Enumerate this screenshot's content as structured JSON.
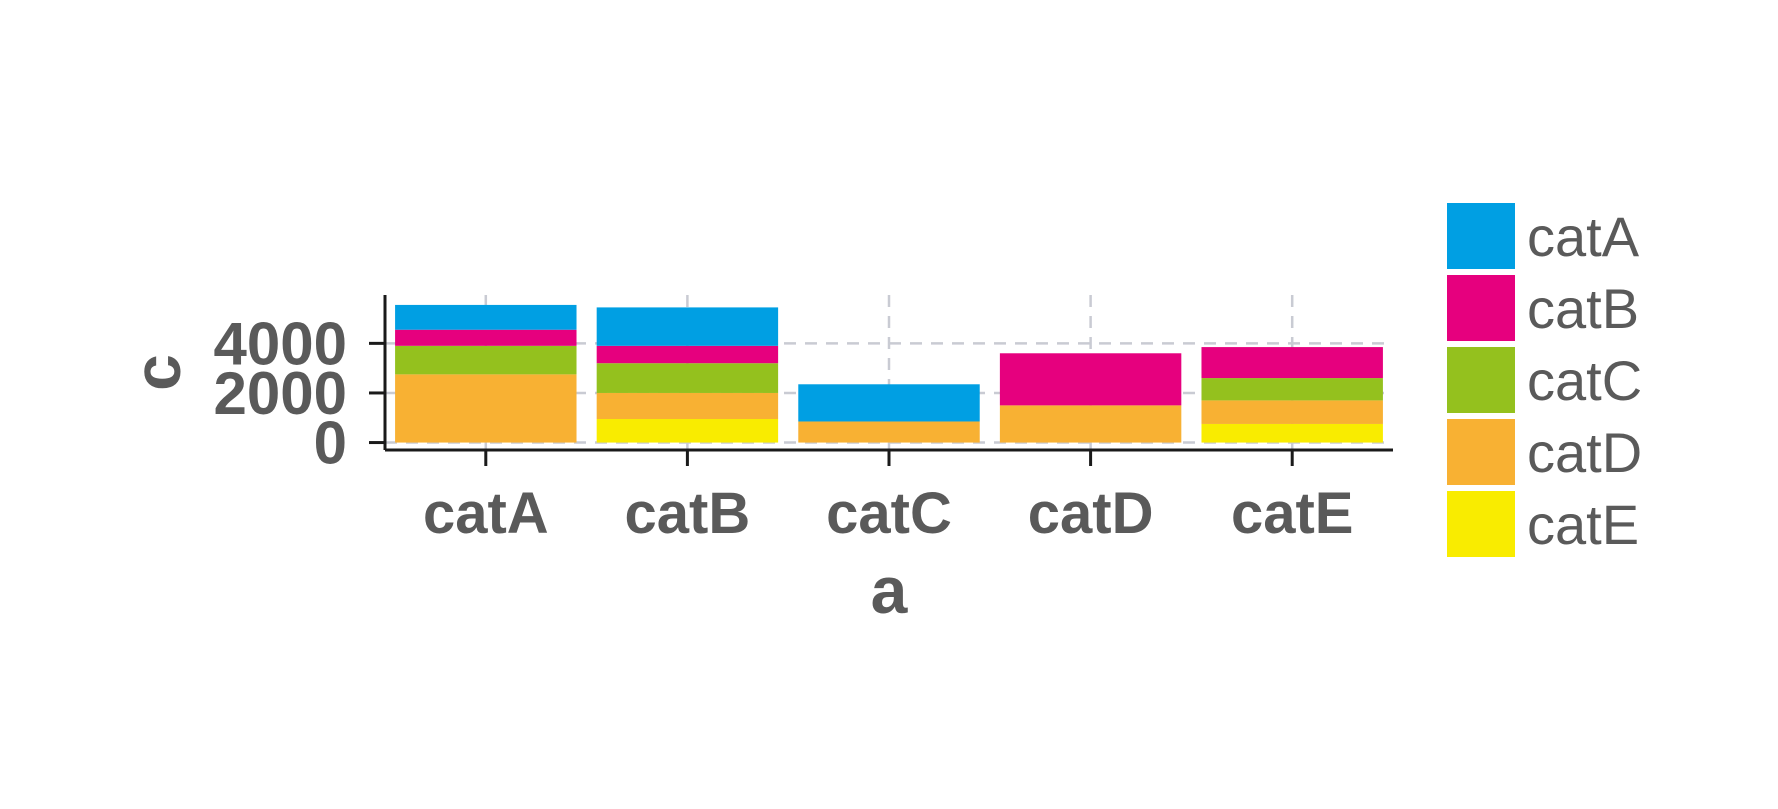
{
  "chart_data": {
    "type": "bar",
    "stacked": true,
    "title": "",
    "xlabel": "a",
    "ylabel": "c",
    "categories": [
      "catA",
      "catB",
      "catC",
      "catD",
      "catE"
    ],
    "y_ticks": [
      0,
      2000,
      4000
    ],
    "y_tick_labels": [
      "0",
      "2000",
      "4000"
    ],
    "ylim": [
      -300,
      5950
    ],
    "grid": true,
    "legend_position": "right",
    "series": [
      {
        "name": "catE",
        "color": "#F9EC00",
        "values": [
          0,
          950,
          0,
          0,
          750
        ]
      },
      {
        "name": "catD",
        "color": "#F8B133",
        "values": [
          2750,
          1050,
          850,
          1500,
          950
        ]
      },
      {
        "name": "catC",
        "color": "#94C11E",
        "values": [
          1150,
          1200,
          0,
          0,
          900
        ]
      },
      {
        "name": "catB",
        "color": "#E6007E",
        "values": [
          650,
          700,
          0,
          2100,
          1250
        ]
      },
      {
        "name": "catA",
        "color": "#009FE3",
        "values": [
          1000,
          1550,
          1500,
          0,
          0
        ]
      }
    ],
    "legend_order": [
      "catA",
      "catB",
      "catC",
      "catD",
      "catE"
    ]
  }
}
